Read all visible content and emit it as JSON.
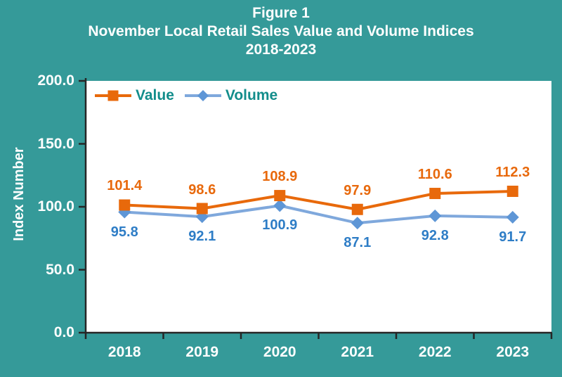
{
  "figure": {
    "title1": "Figure 1",
    "title2": "November Local Retail Sales Value and Volume Indices",
    "title3": "2018-2023"
  },
  "chart_data": {
    "type": "line",
    "title": "Figure 1 November Local Retail Sales Value and Volume Indices 2018-2023",
    "categories": [
      "2018",
      "2019",
      "2020",
      "2021",
      "2022",
      "2023"
    ],
    "series": [
      {
        "name": "Value",
        "values": [
          101.4,
          98.6,
          108.9,
          97.9,
          110.6,
          112.3
        ],
        "marker": "square",
        "line_color": "#E8690B",
        "marker_color": "#E8690B",
        "label_color": "#E8690C"
      },
      {
        "name": "Volume",
        "values": [
          95.8,
          92.1,
          100.9,
          87.1,
          92.8,
          91.7
        ],
        "marker": "diamond",
        "line_color": "#7FA8DC",
        "marker_color": "#5E96D6",
        "label_color": "#2E7DC6"
      }
    ],
    "xlabel": "",
    "ylabel": "Index Number",
    "ylim": [
      0,
      200
    ],
    "y_ticks": [
      0,
      50,
      100,
      150,
      200
    ],
    "y_tick_labels": [
      "0.0",
      "50.0",
      "100.0",
      "150.0",
      "200.0"
    ],
    "grid": false,
    "data_labels": true,
    "legend_position": "top-left-inside"
  },
  "style": {
    "background": "#359A99",
    "plot_background": "#FFFFFF",
    "title_color": "#FFFFFF",
    "axis_text_color": "#FFFFFF",
    "legend_text_color": "#128D8B",
    "axis_line_color": "#262626"
  }
}
